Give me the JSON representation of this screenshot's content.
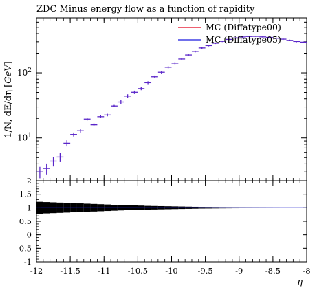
{
  "chart_data": [
    {
      "type": "scatter",
      "title": "ZDC Minus energy flow as a function of rapidity",
      "ylabel_parts": [
        "1/N, dE/dη [",
        "GeV",
        "]"
      ],
      "yscale": "log",
      "xlim": [
        -12,
        -8
      ],
      "ylim": [
        2.2,
        700
      ],
      "y_ticks": [
        {
          "value": 10,
          "base": "10",
          "exp": "1"
        },
        {
          "value": 100,
          "base": "10",
          "exp": "2"
        }
      ],
      "legend": {
        "placement": "top-right"
      },
      "colors": {
        "series_a": "#e4001c",
        "series_b": "#1a1adf",
        "markers": "#5a26c9"
      },
      "series": [
        {
          "name": "MC (Diffatype00)",
          "style": "line"
        },
        {
          "name": "MC (Diffatype05)",
          "style": "line"
        }
      ],
      "x": [
        -11.95,
        -11.85,
        -11.75,
        -11.65,
        -11.55,
        -11.45,
        -11.35,
        -11.25,
        -11.15,
        -11.05,
        -10.95,
        -10.85,
        -10.75,
        -10.65,
        -10.55,
        -10.45,
        -10.35,
        -10.25,
        -10.15,
        -10.05,
        -9.95,
        -9.85,
        -9.75,
        -9.65,
        -9.55,
        -9.45,
        -9.35,
        -9.25,
        -9.15,
        -9.05,
        -8.95,
        -8.85,
        -8.75,
        -8.65,
        -8.55,
        -8.45,
        -8.35,
        -8.25,
        -8.15,
        -8.05
      ],
      "y": [
        3.0,
        3.4,
        4.4,
        5.1,
        8.3,
        11.3,
        12.9,
        19.5,
        15.9,
        21.2,
        22.5,
        31.0,
        35.6,
        44.0,
        50.3,
        57.4,
        70.5,
        87.0,
        102,
        122,
        141,
        163,
        188,
        212,
        241,
        262,
        285,
        305,
        326,
        343,
        355,
        361,
        363,
        356,
        350,
        340,
        329,
        315,
        303,
        296
      ],
      "y_err": [
        0.6,
        0.65,
        0.75,
        0.85,
        0.9,
        0.8,
        0.8,
        1.0,
        0.9,
        1.0,
        1.0,
        1.2,
        1.3,
        1.4,
        1.5,
        1.6,
        1.8,
        2.0,
        2.2,
        2.4,
        2.6,
        2.8,
        3.0,
        3.2,
        3.5,
        3.7,
        3.9,
        4.1,
        4.3,
        4.5,
        4.6,
        4.7,
        4.7,
        4.6,
        4.5,
        4.4,
        4.3,
        4.2,
        4.1,
        4.0
      ]
    },
    {
      "type": "bar",
      "role": "ratio",
      "xlabel": "η",
      "xlim": [
        -12,
        -8
      ],
      "ylim": [
        -1,
        2
      ],
      "x_ticks": [
        "-12",
        "-11.5",
        "-11",
        "-10.5",
        "-10",
        "-9.5",
        "-9",
        "-8.5",
        "-8"
      ],
      "x_tick_values": [
        -12,
        -11.5,
        -11,
        -10.5,
        -10,
        -9.5,
        -9,
        -8.5,
        -8
      ],
      "y_ticks": [
        "-1",
        "-0.5",
        "0",
        "0.5",
        "1",
        "1.5",
        "2"
      ],
      "y_tick_values": [
        -1,
        -0.5,
        0,
        0.5,
        1,
        1.5,
        2
      ],
      "band_color": "#000000",
      "ratio_line_color": "#1a1adf",
      "x": [
        -11.95,
        -11.85,
        -11.75,
        -11.65,
        -11.55,
        -11.45,
        -11.35,
        -11.25,
        -11.15,
        -11.05,
        -10.95,
        -10.85,
        -10.75,
        -10.65,
        -10.55,
        -10.45,
        -10.35,
        -10.25,
        -10.15,
        -10.05,
        -9.95,
        -9.85,
        -9.75,
        -9.65,
        -9.55,
        -9.45,
        -9.35,
        -9.25,
        -9.15,
        -9.05,
        -8.95,
        -8.85,
        -8.75,
        -8.65,
        -8.55,
        -8.45,
        -8.35,
        -8.25,
        -8.15,
        -8.05
      ],
      "ratio": [
        1,
        1,
        1,
        1,
        1,
        1,
        1,
        1,
        1,
        1,
        1,
        1,
        1,
        1,
        1,
        1,
        1,
        1,
        1,
        1,
        1,
        1,
        1,
        1,
        1,
        1,
        1,
        1,
        1,
        1,
        1,
        1,
        1,
        1,
        1,
        1,
        1,
        1,
        1,
        1
      ],
      "band_half": [
        0.22,
        0.21,
        0.2,
        0.19,
        0.18,
        0.17,
        0.16,
        0.15,
        0.14,
        0.13,
        0.12,
        0.11,
        0.1,
        0.09,
        0.085,
        0.08,
        0.07,
        0.065,
        0.06,
        0.055,
        0.05,
        0.045,
        0.04,
        0.035,
        0.03,
        0.028,
        0.025,
        0.022,
        0.02,
        0.018,
        0.016,
        0.015,
        0.014,
        0.013,
        0.012,
        0.011,
        0.01,
        0.01,
        0.01,
        0.01
      ]
    }
  ]
}
